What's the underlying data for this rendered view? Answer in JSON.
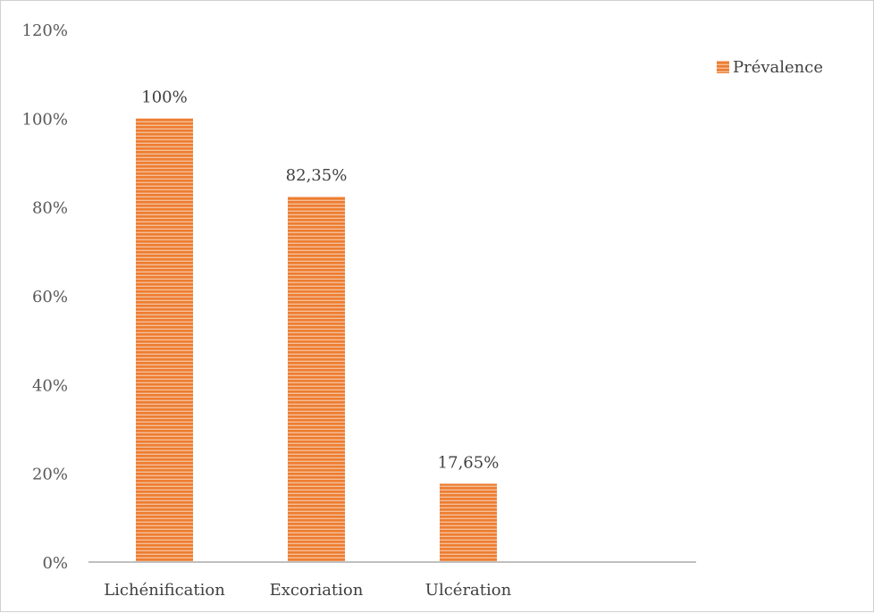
{
  "chart_data": {
    "type": "bar",
    "title": "",
    "xlabel": "",
    "ylabel": "",
    "categories": [
      "Lichénification",
      "Excoriation",
      "Ulcération"
    ],
    "series": [
      {
        "name": "Prévalence",
        "values": [
          100,
          82.35,
          17.65
        ],
        "labels": [
          "100%",
          "82,35%",
          "17,65%"
        ],
        "color": "#ED7D31"
      }
    ],
    "ylim": [
      0,
      120
    ],
    "yticks": [
      0,
      20,
      40,
      60,
      80,
      100,
      120
    ],
    "ytick_labels": [
      "0%",
      "20%",
      "40%",
      "60%",
      "80%",
      "100%",
      "120%"
    ],
    "grid": false,
    "legend": {
      "position": "top-right",
      "entries": [
        "Prévalence"
      ]
    },
    "bar_fill": "horizontal-stripes"
  }
}
